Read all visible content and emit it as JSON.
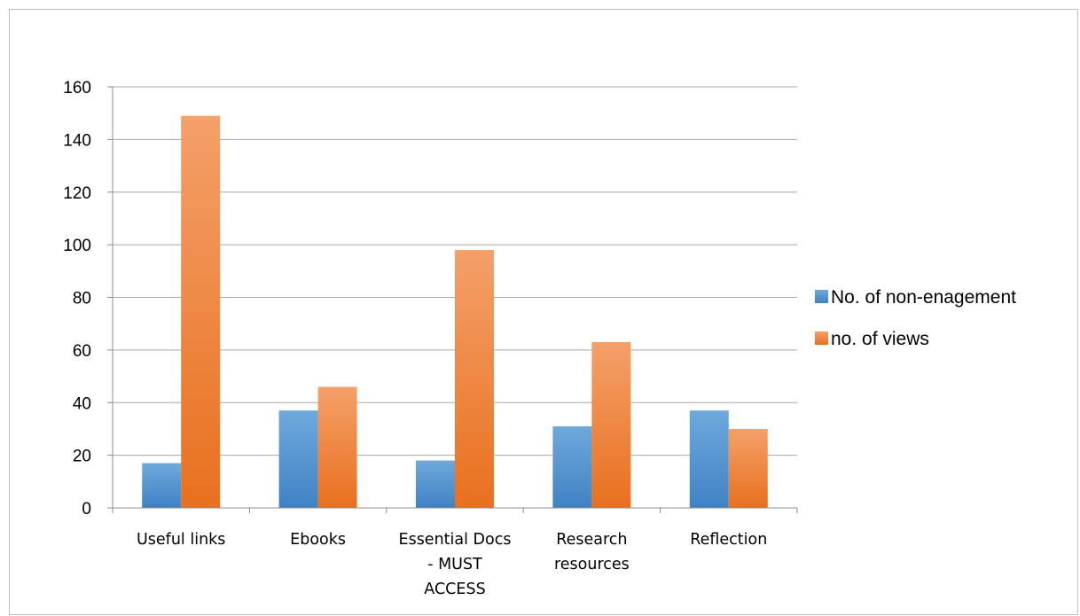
{
  "chart_data": {
    "type": "bar",
    "title": "",
    "xlabel": "",
    "ylabel": "",
    "categories": [
      [
        "Useful links"
      ],
      [
        "Ebooks"
      ],
      [
        "Essential Docs",
        "- MUST",
        "ACCESS"
      ],
      [
        "Research",
        "resources"
      ],
      [
        "Reflection"
      ]
    ],
    "series": [
      {
        "name": "No. of non-enagement",
        "values": [
          17,
          37,
          18,
          31,
          37
        ],
        "color_top": "#6fa9dc",
        "color_bottom": "#3f82c4"
      },
      {
        "name": "no. of views",
        "values": [
          149,
          46,
          98,
          63,
          30
        ],
        "color_top": "#f4a06a",
        "color_bottom": "#e8701e"
      }
    ],
    "ylim": [
      0,
      160
    ],
    "yticks": [
      0,
      20,
      40,
      60,
      80,
      100,
      120,
      140,
      160
    ],
    "grid": true,
    "legend_position": "right"
  }
}
